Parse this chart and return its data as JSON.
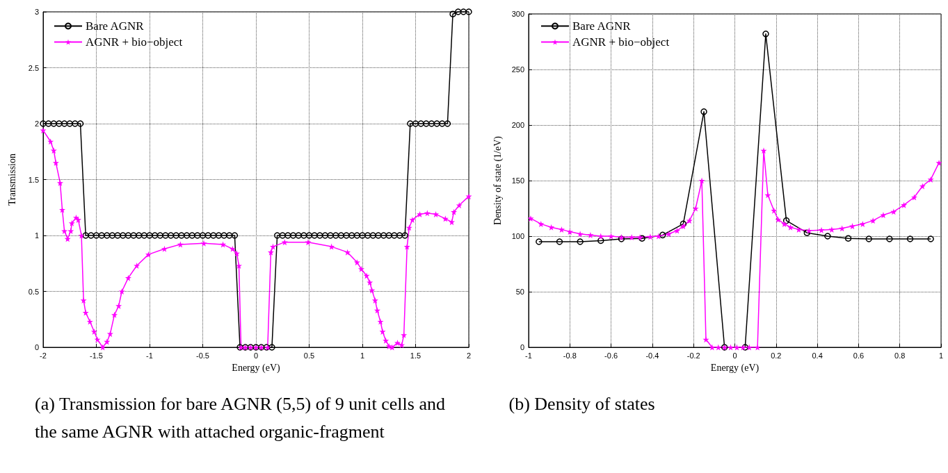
{
  "chart_data": [
    {
      "type": "line",
      "title": "(a) Transmission for bare AGNR (5,5) of 9 unit cells and the same AGNR with attached organic-fragment",
      "xlabel": "Energy (eV)",
      "ylabel": "Transmission",
      "xlim": [
        -2,
        2
      ],
      "xticks": [
        -2,
        -1.5,
        -1,
        -0.5,
        0,
        0.5,
        1,
        1.5,
        2
      ],
      "ylim": [
        0,
        3
      ],
      "yticks": [
        0,
        0.5,
        1,
        1.5,
        2,
        2.5,
        3
      ],
      "grid": true,
      "legend": "top left",
      "series": [
        {
          "name": "Bare AGNR",
          "color": "#000000",
          "marker": "circle",
          "x": [
            -2,
            -1.95,
            -1.9,
            -1.85,
            -1.8,
            -1.75,
            -1.7,
            -1.65,
            -1.6,
            -1.55,
            -1.5,
            -1.45,
            -1.4,
            -1.35,
            -1.3,
            -1.25,
            -1.2,
            -1.15,
            -1.1,
            -1.05,
            -1,
            -0.95,
            -0.9,
            -0.85,
            -0.8,
            -0.75,
            -0.7,
            -0.65,
            -0.6,
            -0.55,
            -0.5,
            -0.45,
            -0.4,
            -0.35,
            -0.3,
            -0.25,
            -0.2,
            -0.15,
            -0.1,
            -0.05,
            0,
            0.05,
            0.1,
            0.15,
            0.2,
            0.25,
            0.3,
            0.35,
            0.4,
            0.45,
            0.5,
            0.55,
            0.6,
            0.65,
            0.7,
            0.75,
            0.8,
            0.85,
            0.9,
            0.95,
            1,
            1.05,
            1.1,
            1.15,
            1.2,
            1.25,
            1.3,
            1.35,
            1.4,
            1.45,
            1.5,
            1.55,
            1.6,
            1.65,
            1.7,
            1.75,
            1.8,
            1.85,
            1.9,
            1.95,
            2
          ],
          "values": [
            2,
            2,
            2,
            2,
            2,
            2,
            2,
            2,
            1,
            1,
            1,
            1,
            1,
            1,
            1,
            1,
            1,
            1,
            1,
            1,
            1,
            1,
            1,
            1,
            1,
            1,
            1,
            1,
            1,
            1,
            1,
            1,
            1,
            1,
            1,
            1,
            1,
            0,
            0,
            0,
            0,
            0,
            0,
            0,
            1,
            1,
            1,
            1,
            1,
            1,
            1,
            1,
            1,
            1,
            1,
            1,
            1,
            1,
            1,
            1,
            1,
            1,
            1,
            1,
            1,
            1,
            1,
            1,
            1,
            2,
            2,
            2,
            2,
            2,
            2,
            2,
            2,
            2.98,
            3,
            3,
            3
          ]
        },
        {
          "name": "AGNR + bio−object",
          "color": "#ff00ff",
          "marker": "star",
          "x": [
            -2,
            -1.93,
            -1.9,
            -1.88,
            -1.84,
            -1.82,
            -1.8,
            -1.77,
            -1.74,
            -1.73,
            -1.69,
            -1.67,
            -1.64,
            -1.62,
            -1.6,
            -1.56,
            -1.52,
            -1.49,
            -1.44,
            -1.4,
            -1.37,
            -1.33,
            -1.29,
            -1.26,
            -1.2,
            -1.12,
            -1.01,
            -0.86,
            -0.71,
            -0.49,
            -0.31,
            -0.22,
            -0.18,
            -0.16,
            -0.14,
            -0.1,
            -0.05,
            0,
            0.05,
            0.11,
            0.14,
            0.16,
            0.27,
            0.49,
            0.71,
            0.86,
            0.95,
            0.99,
            1.04,
            1.07,
            1.09,
            1.12,
            1.14,
            1.17,
            1.19,
            1.22,
            1.25,
            1.28,
            1.33,
            1.37,
            1.39,
            1.42,
            1.44,
            1.47,
            1.54,
            1.61,
            1.69,
            1.78,
            1.84,
            1.86,
            1.91,
            2
          ],
          "values": [
            1.94,
            1.84,
            1.76,
            1.65,
            1.47,
            1.23,
            1.04,
            0.97,
            1.04,
            1.11,
            1.16,
            1.14,
            1.0,
            0.42,
            0.31,
            0.23,
            0.14,
            0.07,
            0.0,
            0.05,
            0.12,
            0.29,
            0.37,
            0.5,
            0.62,
            0.73,
            0.83,
            0.88,
            0.92,
            0.93,
            0.92,
            0.88,
            0.84,
            0.73,
            0,
            0,
            0,
            0,
            0,
            0,
            0.85,
            0.9,
            0.94,
            0.94,
            0.9,
            0.85,
            0.76,
            0.7,
            0.64,
            0.58,
            0.51,
            0.42,
            0.33,
            0.23,
            0.14,
            0.06,
            0.01,
            0.0,
            0.04,
            0.02,
            0.11,
            0.9,
            1.07,
            1.14,
            1.19,
            1.2,
            1.19,
            1.15,
            1.12,
            1.21,
            1.27,
            1.35
          ]
        }
      ]
    },
    {
      "type": "line",
      "title": "(b) Density of states",
      "xlabel": "Energy (eV)",
      "ylabel": "Density of state (1/eV)",
      "xlim": [
        -1,
        1
      ],
      "xticks": [
        -1,
        -0.8,
        -0.6,
        -0.4,
        -0.2,
        0,
        0.2,
        0.4,
        0.6,
        0.8,
        1
      ],
      "ylim": [
        0,
        300
      ],
      "yticks": [
        0,
        50,
        100,
        150,
        200,
        250,
        300
      ],
      "grid": true,
      "legend": "top left",
      "series": [
        {
          "name": "Bare AGNR",
          "color": "#000000",
          "marker": "circle",
          "x": [
            -0.95,
            -0.85,
            -0.75,
            -0.65,
            -0.55,
            -0.45,
            -0.35,
            -0.25,
            -0.15,
            -0.05,
            0.05,
            0.15,
            0.25,
            0.35,
            0.45,
            0.55,
            0.65,
            0.75,
            0.85,
            0.95
          ],
          "values": [
            95,
            95,
            95,
            96,
            97.5,
            98,
            101,
            111,
            212,
            0,
            0,
            282,
            114,
            103,
            100,
            98,
            97.5,
            97.5,
            97.5,
            97.5
          ]
        },
        {
          "name": "AGNR + bio−object",
          "color": "#ff00ff",
          "marker": "star",
          "x": [
            -0.99,
            -0.94,
            -0.89,
            -0.84,
            -0.8,
            -0.75,
            -0.7,
            -0.65,
            -0.6,
            -0.55,
            -0.5,
            -0.46,
            -0.41,
            -0.37,
            -0.32,
            -0.28,
            -0.25,
            -0.22,
            -0.19,
            -0.16,
            -0.14,
            -0.11,
            -0.08,
            -0.05,
            -0.02,
            0.01,
            0.04,
            0.07,
            0.11,
            0.14,
            0.16,
            0.19,
            0.21,
            0.24,
            0.27,
            0.31,
            0.36,
            0.42,
            0.47,
            0.52,
            0.57,
            0.62,
            0.67,
            0.72,
            0.77,
            0.82,
            0.87,
            0.91,
            0.95,
            0.99
          ],
          "values": [
            116,
            111,
            108,
            106,
            104,
            102,
            101,
            100,
            100,
            99,
            99,
            99,
            99.5,
            100,
            102,
            105,
            109,
            114,
            125,
            150,
            7,
            0,
            0,
            0,
            0,
            0,
            0,
            0,
            0,
            177,
            137,
            123,
            115,
            111,
            108,
            106,
            105,
            105.5,
            106,
            107,
            109,
            111,
            114,
            119,
            122,
            128,
            135,
            145,
            151,
            166
          ]
        }
      ]
    }
  ]
}
